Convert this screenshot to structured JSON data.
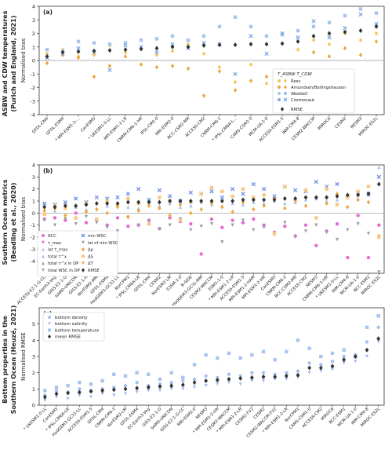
{
  "colors": {
    "ross": "#f6c35a",
    "amundsen": "#eda43f",
    "weddell": "#a9c5ee",
    "cosmonaut": "#7da7e6",
    "rmse": "#333333",
    "pink": "#e56bd6",
    "blue": "#6e8fe6",
    "lightblue": "#a7c0f0",
    "gray": "#9aa0aa",
    "orange": "#f0a63c",
    "lorange": "#f7c985",
    "zero_line": "#999999"
  },
  "chart_data": [
    {
      "type": "scatter",
      "panel": "(a)",
      "side_title": [
        "ASBW and CDW temperatures",
        "(Purich and England, 2021)"
      ],
      "ylabel": "Normalised bias",
      "ylim": [
        -4,
        4
      ],
      "yticks": [
        -4,
        -3,
        -2,
        -1,
        0,
        1,
        2,
        3,
        4
      ],
      "legend_title": "T_ASBW  T_CDW",
      "legend_position": "right-bottom",
      "legend": [
        "Ross",
        "Amundsen/Bellingshausen",
        "Weddell",
        "Cosmonaut",
        "RMSE"
      ],
      "categories": [
        "GFDL-CM4",
        "GFDL-ESM4",
        "* MPI-ESM1-2-...",
        "CanESM5",
        "* UKESM1-0-LL",
        "MPI-ESM1-2-LR",
        "CNRM-CM6-1-HR",
        "IPSL-CM5-0",
        "MRI-ESM2-0",
        "BCC-CSM2-MR",
        "ACCESS-CM2",
        "CNRM-CM6-1",
        "* IPSL-CM6A-L...",
        "CAMS-CSM1-0",
        "MCM-UA-1-0",
        "ACCESS-ESM1-5",
        "INM-CM4-8",
        "CESM2-WACCM",
        "MIROC6",
        "CESM2",
        "NESM3",
        "MIROC-ES2L"
      ],
      "series": [
        {
          "name": "RMSE",
          "key": "rmse",
          "shape": "diamond",
          "values": [
            0.3,
            0.6,
            0.65,
            0.7,
            0.75,
            0.8,
            0.85,
            0.9,
            1.0,
            1.0,
            1.1,
            1.15,
            1.15,
            1.2,
            1.2,
            1.25,
            1.4,
            1.8,
            2.0,
            2.1,
            2.2,
            2.5
          ]
        },
        {
          "name": "Ross",
          "key": "ross",
          "shape": "diamond",
          "values": [
            0.5,
            0.8,
            0.3,
            0.4,
            1.1,
            0.6,
            0.9,
            0.4,
            0.7,
            1.2,
            0.5,
            -0.5,
            -1.6,
            -0.3,
            -1.7,
            -0.7,
            0.8,
            1.5,
            1.2,
            2.0,
            1.5,
            2.0
          ]
        },
        {
          "name": "Amundsen/Bellingshausen",
          "key": "amundsen",
          "shape": "diamond",
          "values": [
            -0.2,
            0.4,
            0.2,
            -1.2,
            -0.4,
            0.3,
            -0.3,
            -0.5,
            -0.4,
            -0.6,
            -2.6,
            -0.8,
            -2.2,
            -1.5,
            -1.2,
            -1.3,
            -0.8,
            0.6,
            0.3,
            0.9,
            0.4,
            1.4
          ]
        },
        {
          "name": "Weddell",
          "key": "weddell",
          "shape": "square",
          "values": [
            0.8,
            0.7,
            1.4,
            1.3,
            1.2,
            1.3,
            1.5,
            1.6,
            1.8,
            1.5,
            1.8,
            2.5,
            3.2,
            2.5,
            1.8,
            1.9,
            2.2,
            2.5,
            2.8,
            3.3,
            3.8,
            3.5
          ]
        },
        {
          "name": "Cosmonaut",
          "key": "cosmonaut",
          "shape": "x",
          "values": [
            0.2,
            0.5,
            0.9,
            0.6,
            -0.7,
            1.1,
            1.0,
            0.6,
            1.2,
            0.9,
            1.3,
            1.2,
            -1.0,
            1.8,
            0.5,
            2.0,
            1.7,
            2.9,
            1.7,
            2.4,
            3.4,
            2.7
          ]
        }
      ]
    },
    {
      "type": "scatter",
      "panel": "(b)",
      "side_title": [
        "Southern Ocean metrics",
        "(Beadling et al., 2020)"
      ],
      "ylabel": "Normalised bias",
      "ylim": [
        -5,
        4
      ],
      "yticks": [
        -4,
        -3,
        -2,
        -1,
        0,
        1,
        2,
        3,
        4
      ],
      "legend_position": "lower-left",
      "legend": [
        "ACC",
        "τ_max",
        "lat τ_max",
        "total τ^x",
        "total τ^x in DP",
        "total WSC in DP",
        "min WSC",
        "lat of min WSC",
        "Δρ",
        "ΔS",
        "ΔT",
        "RMSE"
      ],
      "categories": [
        "ACCESS-E2-1-G-CC",
        "EC-Earth3-Veg",
        "GISS-E2-1-G",
        "SAM0-UNICON",
        "GISS-E2-1-H",
        "NorESM2-MM",
        "GFDL-ESM4",
        "HadGEM3-GC31-LL",
        "NorCPM1",
        "* IPSL-CM6A-LR",
        "GFDL-CM4",
        "CESM2",
        "NorESM2-LM",
        "E3SM-1-0",
        "B-SIDE",
        "HadGEM3-GC31-MM",
        "CESM2-WACCM",
        "ESM1-1-0",
        "* MPI-ESM1-2-LR",
        "ACCESS-ESM1-5",
        "MPI-ESM1-2-HAM",
        "MPI-ESM1-2-HR",
        "CanESM5",
        "CNRM-CM6-1",
        "BCC-CSM2-MR",
        "ACCESS-CM2",
        "NESM3",
        "CNRM-CM6-1-HR",
        "* UKESM1-0-LL",
        "INM-CM4-8",
        "MCM-UA-1-0",
        "BCC-ESM1",
        "MIROC-ES2L"
      ],
      "series": [
        {
          "name": "RMSE",
          "key": "rmse",
          "shape": "diamond",
          "values": [
            0.5,
            0.5,
            0.6,
            0.6,
            0.7,
            0.8,
            0.8,
            0.8,
            0.9,
            0.9,
            0.9,
            0.9,
            1.0,
            1.0,
            1.0,
            1.0,
            1.0,
            1.0,
            1.0,
            1.1,
            1.1,
            1.1,
            1.1,
            1.2,
            1.2,
            1.3,
            1.3,
            1.3,
            1.4,
            1.5,
            1.5,
            1.6,
            2.4
          ]
        },
        {
          "name": "ACC",
          "key": "pink",
          "shape": "circle",
          "values": [
            -0.5,
            -0.4,
            -0.6,
            0.0,
            -0.8,
            -0.6,
            -1.0,
            -0.4,
            -1.1,
            -1.0,
            -0.6,
            -1.3,
            -0.4,
            -0.7,
            -0.9,
            -3.4,
            -0.5,
            -1.2,
            -0.6,
            -0.8,
            -0.5,
            -1.0,
            -1.6,
            -1.1,
            -1.9,
            -1.0,
            -2.7,
            -1.5,
            -0.9,
            -3.7,
            -0.2,
            -3.7,
            -1.0
          ]
        },
        {
          "name": "min WSC",
          "key": "blue",
          "shape": "x",
          "values": [
            0.8,
            0.7,
            0.9,
            1.2,
            0.9,
            1.3,
            1.2,
            1.3,
            1.6,
            2.0,
            1.1,
            1.9,
            1.4,
            1.0,
            1.7,
            1.6,
            1.8,
            1.3,
            2.0,
            1.6,
            2.4,
            2.0,
            1.4,
            2.2,
            1.9,
            1.8,
            2.6,
            2.2,
            2.4,
            1.3,
            1.7,
            1.6,
            3.0
          ]
        },
        {
          "name": "total τ^x",
          "key": "lightblue",
          "shape": "triangle",
          "values": [
            0.3,
            0.2,
            0.4,
            0.5,
            0.3,
            0.4,
            0.6,
            0.7,
            0.5,
            0.4,
            0.7,
            0.6,
            0.8,
            0.5,
            0.6,
            0.9,
            0.7,
            0.6,
            0.8,
            0.7,
            0.9,
            0.8,
            1.0,
            0.8,
            0.9,
            1.1,
            1.2,
            1.0,
            1.1,
            1.4,
            1.2,
            1.5,
            3.8
          ]
        },
        {
          "name": "lat of min WSC",
          "key": "gray",
          "shape": "tri-down",
          "values": [
            -0.6,
            -1.0,
            -0.5,
            -0.9,
            -0.3,
            -0.8,
            -1.2,
            -1.5,
            -0.4,
            -1.0,
            -0.7,
            -1.3,
            -1.0,
            -0.5,
            -1.4,
            -1.1,
            -0.9,
            -2.4,
            -1.0,
            -0.6,
            -1.4,
            -1.2,
            -1.8,
            -0.8,
            -2.0,
            -1.5,
            -1.0,
            -1.6,
            -2.2,
            -1.4,
            -0.9,
            -1.7,
            -4.9
          ]
        },
        {
          "name": "Δρ",
          "key": "orange",
          "shape": "diamond",
          "values": [
            0.2,
            0.4,
            -0.2,
            0.6,
            0.1,
            0.3,
            0.0,
            0.5,
            -0.3,
            0.2,
            0.6,
            0.4,
            -0.2,
            0.7,
            0.0,
            0.3,
            0.8,
            0.5,
            0.1,
            0.9,
            0.3,
            0.6,
            1.2,
            0.4,
            1.0,
            0.6,
            1.3,
            0.8,
            1.6,
            0.5,
            1.1,
            0.9,
            -1.9
          ]
        },
        {
          "name": "ΔS",
          "key": "lorange",
          "shape": "square",
          "values": [
            -0.1,
            0.6,
            0.4,
            -0.4,
            0.8,
            -0.5,
            1.0,
            0.7,
            1.2,
            0.8,
            -0.9,
            1.3,
            1.0,
            -0.6,
            0.9,
            1.6,
            2.1,
            1.8,
            1.4,
            2.0,
            1.3,
            1.5,
            -1.7,
            2.2,
            1.1,
            1.9,
            -0.4,
            2.0,
            0.7,
            1.3,
            1.8,
            2.2,
            -2.0
          ]
        }
      ]
    },
    {
      "type": "scatter",
      "panel": "(c)",
      "side_title": [
        "Bottom properties in the",
        "Southern Ocean (Heuzé, 2021)"
      ],
      "ylabel": "Normalised RMSE",
      "ylim": [
        0,
        6
      ],
      "yticks": [
        0,
        1,
        2,
        3,
        4,
        5
      ],
      "legend_position": "top-left",
      "legend": [
        "bottom density",
        "bottom salinity",
        "bottom temperature",
        "mean RMSE"
      ],
      "categories": [
        "* UKESM1-0-LL",
        "CanESM5",
        "* IPSL-CM6A-LR",
        "HadGEM3-GC31-LL",
        "ACCESS-ESM1-5",
        "GFDL-CM4",
        "CNRM-CM6-1",
        "NorESM2-LM",
        "GFDL-ESM4",
        "EC-Earth3-Veg",
        "GISS-E2-1-G",
        "SAM0-UNICON",
        "GISS-E2-1-G-CC",
        "MRI-ESM2-0",
        "NESM3",
        "* MPI-ESM1-2-HR",
        "CESM2-WACCM",
        "* MPI-ESM1-2-LR",
        "CESM2-FV2",
        "CESM2",
        "CESM2-WACCM-FV2",
        "* MPI-ESM1-2-LR",
        "NorCPM1",
        "CAMS-CSM1-0",
        "ACCESS-CM2",
        "MIROC6",
        "BCC-ESM1",
        "MCM-UA-1-0",
        "INM-CM4-8",
        "MIROC-ES2L"
      ],
      "series": [
        {
          "name": "mean RMSE",
          "key": "rmse",
          "shape": "diamond",
          "values": [
            0.5,
            0.7,
            0.75,
            0.8,
            0.85,
            0.9,
            0.95,
            1.0,
            1.05,
            1.1,
            1.15,
            1.2,
            1.25,
            1.4,
            1.5,
            1.55,
            1.6,
            1.65,
            1.7,
            1.75,
            1.75,
            1.8,
            1.85,
            2.3,
            2.3,
            2.4,
            2.8,
            3.0,
            3.4,
            4.1
          ]
        },
        {
          "name": "bottom density",
          "key": "lightblue",
          "shape": "circle",
          "values": [
            0.6,
            0.9,
            0.8,
            1.0,
            0.9,
            1.0,
            1.1,
            1.2,
            1.4,
            1.2,
            1.3,
            1.4,
            1.5,
            1.6,
            1.8,
            1.7,
            1.9,
            1.8,
            2.0,
            2.0,
            1.9,
            2.0,
            2.1,
            2.6,
            2.5,
            2.7,
            3.0,
            3.1,
            3.9,
            4.8
          ]
        },
        {
          "name": "bottom salinity",
          "key": "lightblue",
          "shape": "tri-down",
          "values": [
            0.3,
            0.5,
            0.4,
            0.6,
            0.5,
            0.7,
            0.6,
            0.7,
            0.8,
            0.9,
            0.9,
            1.0,
            1.0,
            1.1,
            1.2,
            1.3,
            1.4,
            1.3,
            1.5,
            1.5,
            1.6,
            1.6,
            1.7,
            2.0,
            2.1,
            2.2,
            2.6,
            2.7,
            3.0,
            3.9
          ]
        },
        {
          "name": "bottom temperature",
          "key": "weddell",
          "shape": "square",
          "values": [
            0.9,
            1.1,
            1.2,
            1.4,
            1.3,
            1.5,
            1.9,
            1.8,
            2.0,
            1.9,
            1.6,
            2.0,
            1.7,
            2.5,
            3.1,
            2.9,
            3.2,
            2.9,
            3.1,
            3.3,
            2.8,
            3.3,
            4.0,
            3.5,
            3.0,
            3.2,
            3.4,
            3.0,
            4.8,
            5.5
          ]
        }
      ]
    }
  ]
}
